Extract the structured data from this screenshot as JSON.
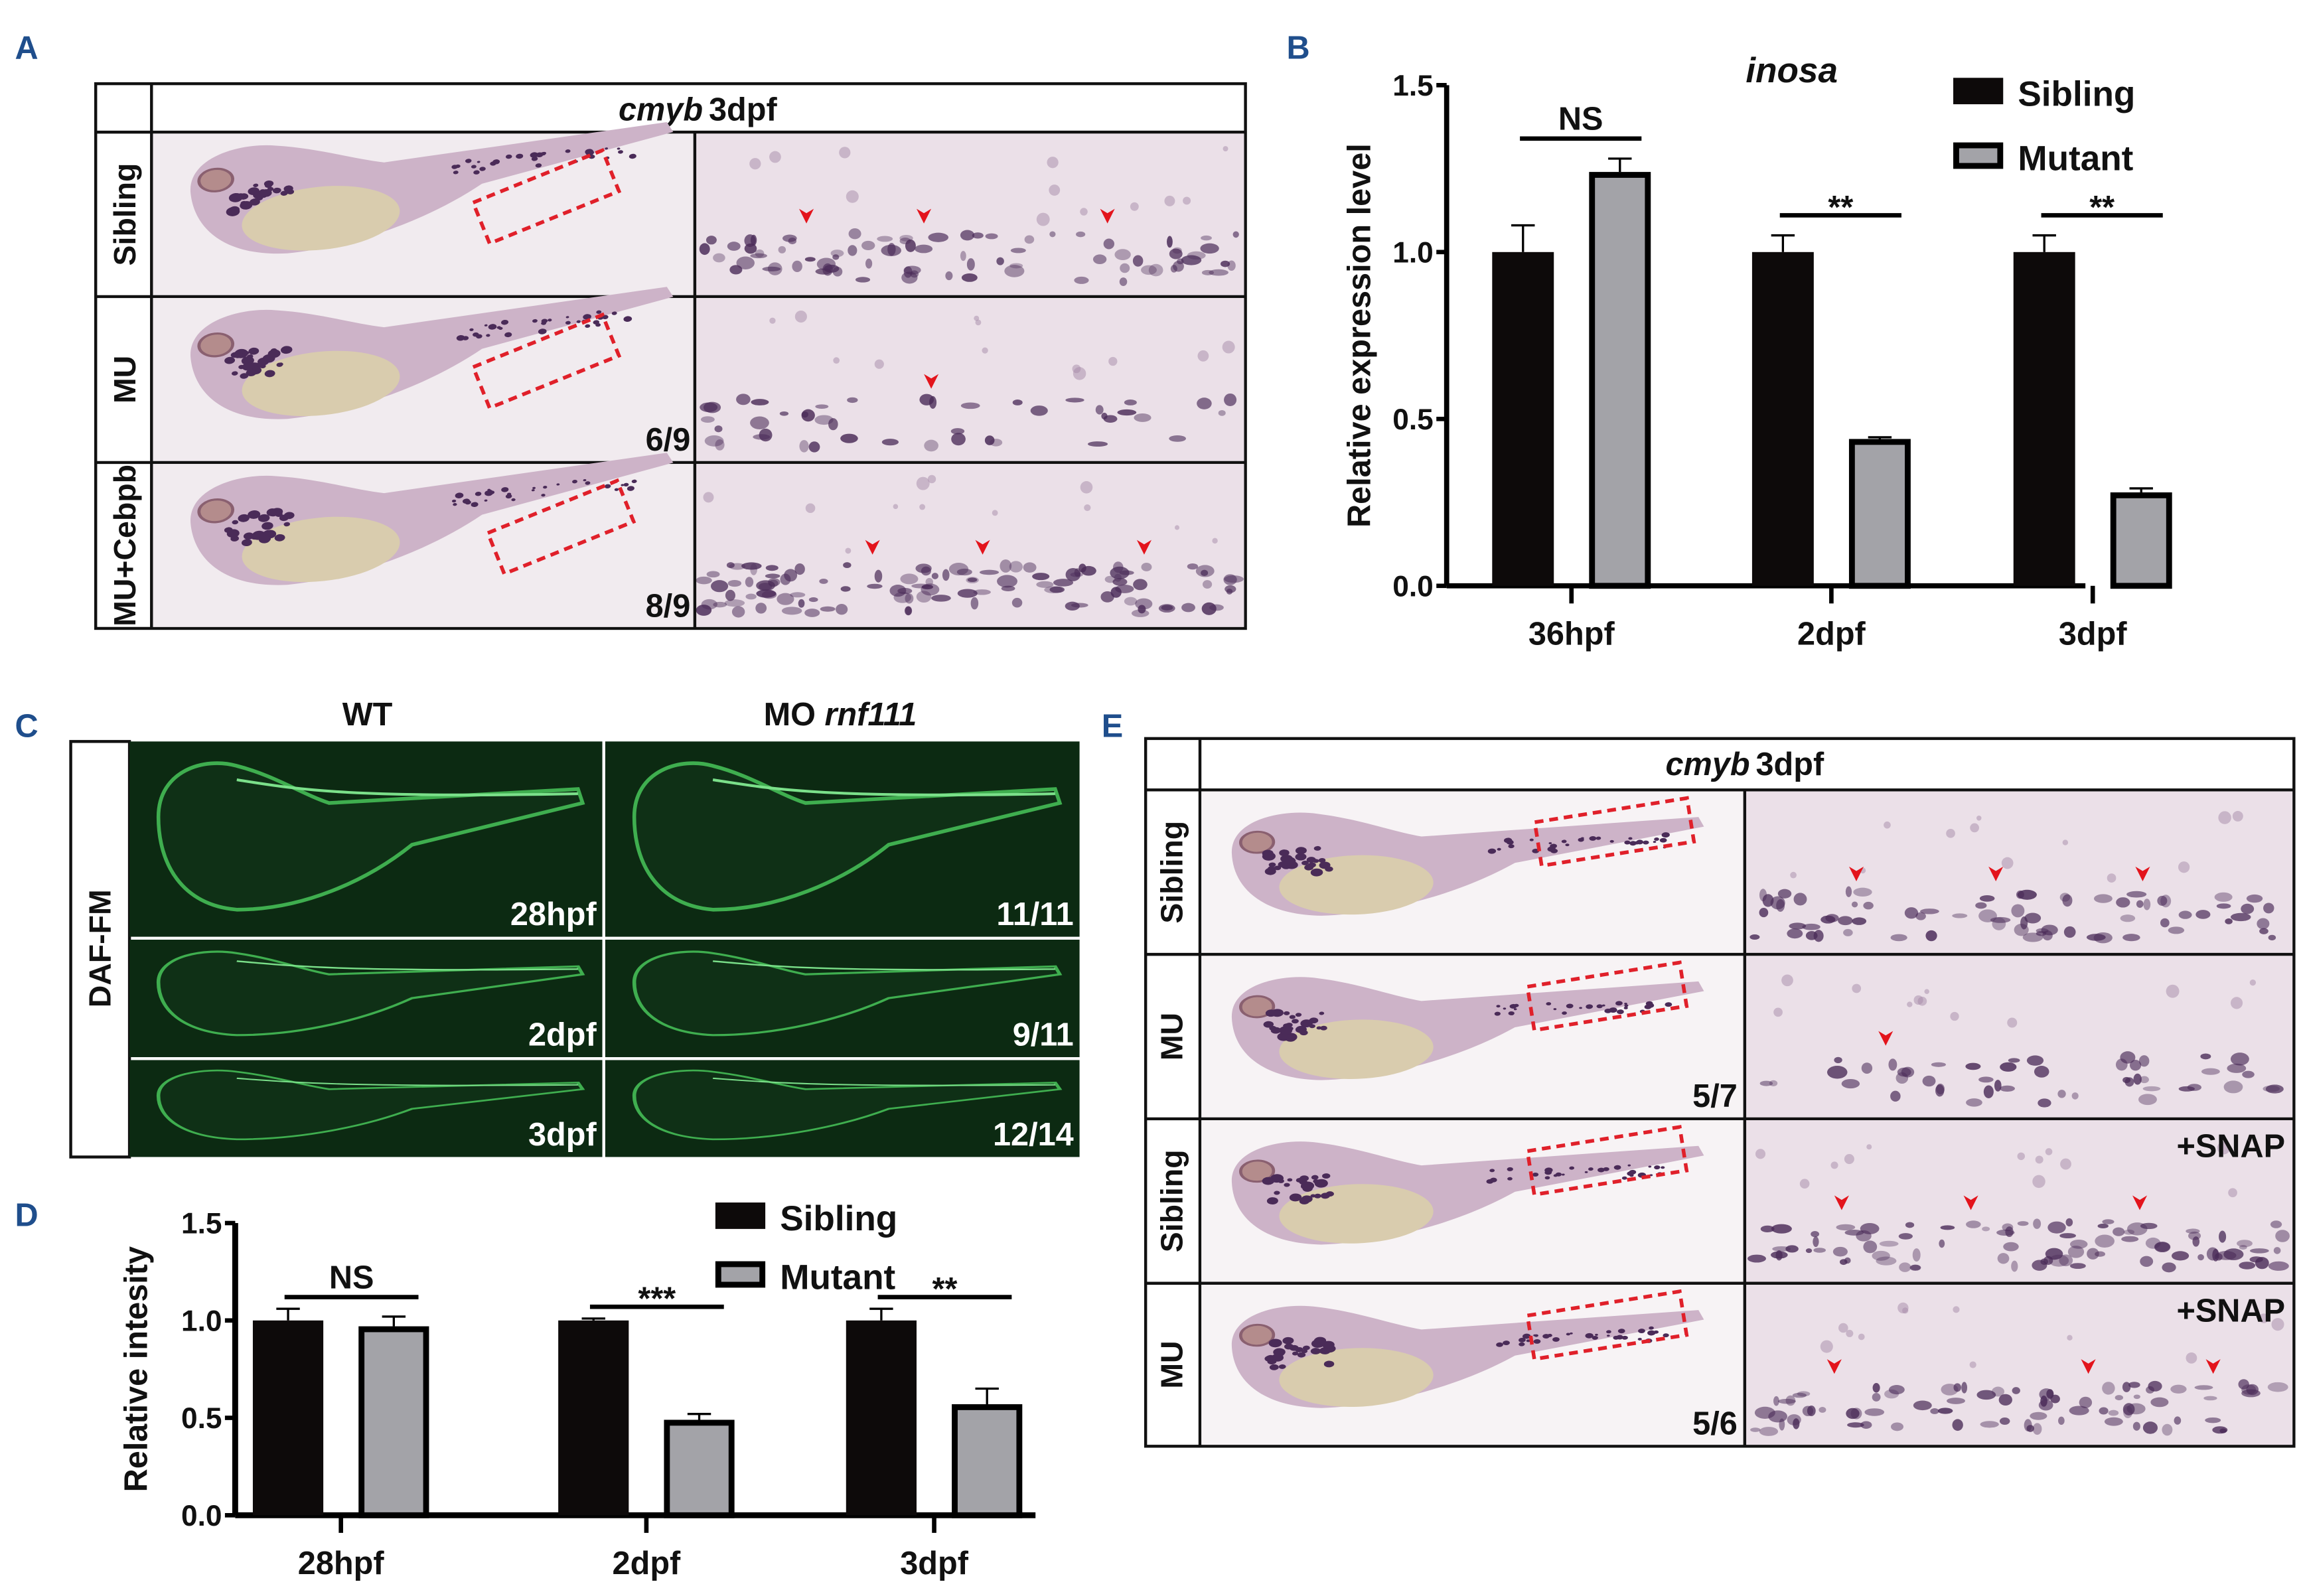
{
  "panels": {
    "A": {
      "label": "A",
      "header_gene": "cmyb",
      "header_stage": "3dpf",
      "rows": [
        {
          "label": "Sibling",
          "count": ""
        },
        {
          "label": "MU",
          "count": "6/9"
        },
        {
          "label": "MU+Cebpb",
          "count": "8/9"
        }
      ]
    },
    "B": {
      "label": "B"
    },
    "C": {
      "label": "C",
      "side_label": "DAF-FM",
      "col_headers": [
        {
          "text": "WT",
          "italic": ""
        },
        {
          "text": "MO ",
          "italic": "rnf111"
        }
      ],
      "rows": [
        {
          "stage": "28hpf",
          "count": "11/11"
        },
        {
          "stage": "2dpf",
          "count": "9/11"
        },
        {
          "stage": "3dpf",
          "count": "12/14"
        }
      ]
    },
    "D": {
      "label": "D"
    },
    "E": {
      "label": "E",
      "header_gene": "cmyb",
      "header_stage": "3dpf",
      "rows": [
        {
          "label": "Sibling",
          "count": "",
          "treatment": ""
        },
        {
          "label": "MU",
          "count": "5/7",
          "treatment": ""
        },
        {
          "label": "Sibling",
          "count": "",
          "treatment": "+SNAP"
        },
        {
          "label": "MU",
          "count": "5/6",
          "treatment": "+SNAP"
        }
      ]
    }
  },
  "colors": {
    "panel_label": "#1f4e8c",
    "sibling_bar": "#0d0a0a",
    "mutant_bar": "#a3a3a8",
    "ish_background": "#ebe0e8",
    "ish_stain": "#4a2b58",
    "fluorescence": "#3fae4f",
    "highlight_box": "#e0202a"
  },
  "chart_data": [
    {
      "panel": "B",
      "type": "bar",
      "title": "inosa",
      "xlabel": "",
      "ylabel": "Relative expression level",
      "categories": [
        "36hpf",
        "2dpf",
        "3dpf"
      ],
      "ylim": [
        0,
        1.5
      ],
      "yticks": [
        "0.0",
        "0.5",
        "1.0",
        "1.5"
      ],
      "legend": "top-right",
      "grid": false,
      "series": [
        {
          "name": "Sibling",
          "values": [
            1.0,
            1.0,
            1.0
          ],
          "errors": [
            0.08,
            0.05,
            0.05
          ]
        },
        {
          "name": "Mutant",
          "values": [
            1.24,
            0.44,
            0.28
          ],
          "errors": [
            0.04,
            0.005,
            0.012
          ]
        }
      ],
      "significance": [
        "NS",
        "**",
        "**"
      ]
    },
    {
      "panel": "D",
      "type": "bar",
      "title": "",
      "xlabel": "",
      "ylabel": "Relative intesity",
      "categories": [
        "28hpf",
        "2dpf",
        "3dpf"
      ],
      "ylim": [
        0,
        1.5
      ],
      "yticks": [
        "0.0",
        "0.5",
        "1.0",
        "1.5"
      ],
      "legend": "top-right",
      "grid": false,
      "series": [
        {
          "name": "Sibling",
          "values": [
            1.0,
            1.0,
            1.0
          ],
          "errors": [
            0.06,
            0.01,
            0.06
          ]
        },
        {
          "name": "Mutant",
          "values": [
            0.97,
            0.49,
            0.57
          ],
          "errors": [
            0.05,
            0.03,
            0.08
          ]
        }
      ],
      "significance": [
        "NS",
        "***",
        "**"
      ]
    }
  ]
}
